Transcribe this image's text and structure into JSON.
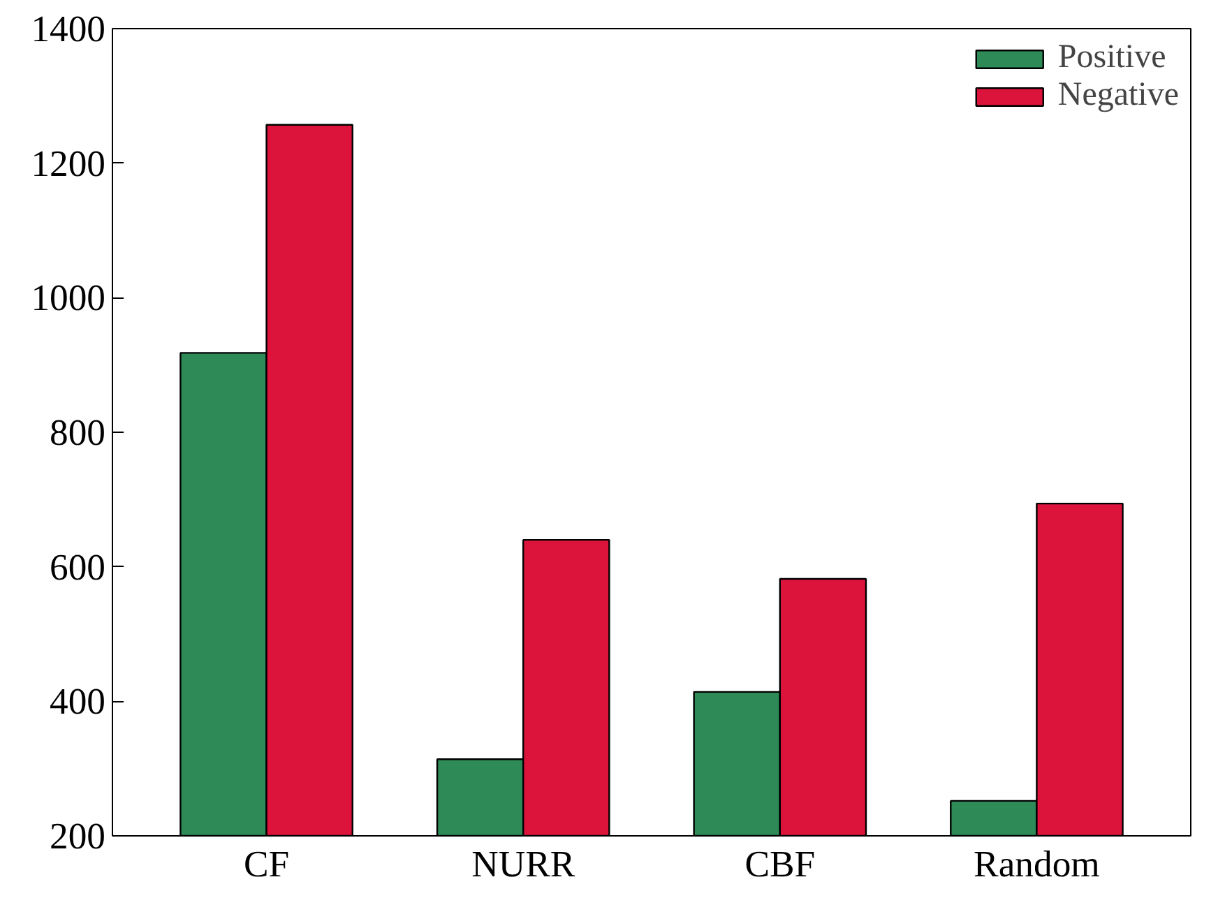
{
  "chart_data": {
    "type": "bar",
    "categories": [
      "CF",
      "NURR",
      "CBF",
      "Random"
    ],
    "series": [
      {
        "name": "Positive",
        "color": "#2e8b57",
        "values": [
          918,
          314,
          414,
          252
        ]
      },
      {
        "name": "Negative",
        "color": "#dc143c",
        "values": [
          1257,
          640,
          582,
          694
        ]
      }
    ],
    "ylim": [
      200,
      1400
    ],
    "yticks": [
      200,
      400,
      600,
      800,
      1000,
      1200,
      1400
    ],
    "grid": false,
    "legend": "top right"
  }
}
